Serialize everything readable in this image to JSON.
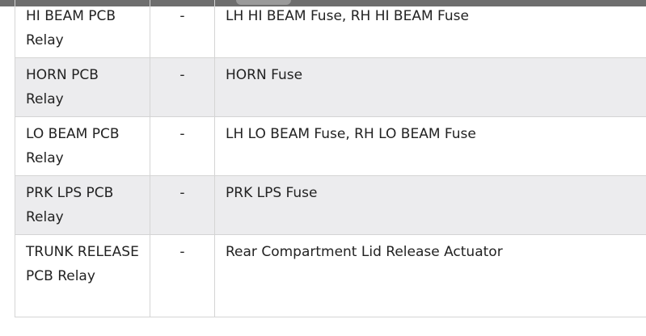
{
  "rows": [
    {
      "component": "HI BEAM PCB Relay",
      "location": "-",
      "controls": "LH HI BEAM Fuse, RH HI BEAM Fuse"
    },
    {
      "component": "HORN PCB Relay",
      "location": "-",
      "controls": "HORN Fuse"
    },
    {
      "component": "LO BEAM PCB Relay",
      "location": "-",
      "controls": "LH LO BEAM Fuse, RH LO BEAM Fuse"
    },
    {
      "component": "PRK LPS PCB Relay",
      "location": "-",
      "controls": "PRK LPS Fuse"
    },
    {
      "component": "TRUNK RELEASE PCB Relay",
      "location": "-",
      "controls": "Rear Compartment Lid Release Actuator"
    }
  ],
  "colors": {
    "alt_row": "#ececee",
    "border": "#d4d4d4",
    "header_bar": "#6e6e6e"
  }
}
